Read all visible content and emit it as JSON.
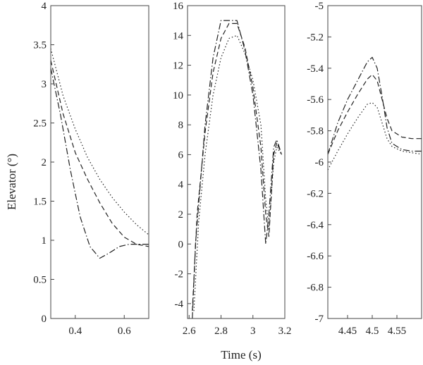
{
  "ylabel": "Elevator (°)",
  "xlabel": "Time (s)",
  "chart_data": [
    {
      "type": "line",
      "xlim": [
        0.3,
        0.7
      ],
      "ylim": [
        0,
        4
      ],
      "xticks": [
        0.4,
        0.6
      ],
      "xtick_labels": [
        "0.4",
        "0.6"
      ],
      "yticks": [
        0,
        0.5,
        1,
        1.5,
        2,
        2.5,
        3,
        3.5,
        4
      ],
      "ytick_labels": [
        "0",
        "0.5",
        "1",
        "1.5",
        "2",
        "2.5",
        "3",
        "3.5",
        "4"
      ],
      "series": [
        {
          "style": "dotted",
          "x": [
            0.3,
            0.35,
            0.4,
            0.45,
            0.5,
            0.55,
            0.6,
            0.65,
            0.7
          ],
          "y": [
            3.45,
            2.85,
            2.42,
            2.06,
            1.78,
            1.55,
            1.36,
            1.2,
            1.07
          ]
        },
        {
          "style": "dashed",
          "x": [
            0.3,
            0.35,
            0.4,
            0.45,
            0.5,
            0.55,
            0.6,
            0.65,
            0.7
          ],
          "y": [
            3.3,
            2.62,
            2.12,
            1.78,
            1.48,
            1.22,
            1.04,
            0.95,
            0.92
          ]
        },
        {
          "style": "dashdot",
          "x": [
            0.3,
            0.34,
            0.38,
            0.42,
            0.46,
            0.5,
            0.54,
            0.58,
            0.62,
            0.66,
            0.7
          ],
          "y": [
            3.2,
            2.6,
            1.9,
            1.3,
            0.92,
            0.77,
            0.84,
            0.92,
            0.95,
            0.95,
            0.95
          ]
        }
      ]
    },
    {
      "type": "line",
      "xlim": [
        2.59,
        3.2
      ],
      "ylim": [
        -5,
        16
      ],
      "xticks": [
        2.6,
        2.8,
        3,
        3.2
      ],
      "xtick_labels": [
        "2.6",
        "2.8",
        "3",
        "3.2"
      ],
      "yticks": [
        -4,
        -2,
        0,
        2,
        4,
        6,
        8,
        10,
        12,
        14,
        16
      ],
      "ytick_labels": [
        "-4",
        "-2",
        "0",
        "2",
        "4",
        "6",
        "8",
        "10",
        "12",
        "14",
        "16"
      ],
      "series": [
        {
          "style": "dotted",
          "x": [
            2.63,
            2.66,
            2.7,
            2.75,
            2.8,
            2.85,
            2.9,
            2.95,
            3.0,
            3.05,
            3.08,
            3.1,
            3.13,
            3.15,
            3.18
          ],
          "y": [
            -4.5,
            1.5,
            6.0,
            10.0,
            12.5,
            13.8,
            14.0,
            12.8,
            11.0,
            8.0,
            3.0,
            1.0,
            5.5,
            6.5,
            6.0
          ]
        },
        {
          "style": "dashed",
          "x": [
            2.62,
            2.65,
            2.7,
            2.75,
            2.8,
            2.85,
            2.9,
            2.95,
            3.0,
            3.05,
            3.08,
            3.1,
            3.13,
            3.15,
            3.18
          ],
          "y": [
            -4.5,
            2.0,
            7.5,
            11.5,
            13.8,
            14.8,
            14.8,
            13.2,
            10.5,
            6.5,
            2.0,
            0.5,
            6.0,
            6.8,
            6.0
          ]
        },
        {
          "style": "dashdot",
          "x": [
            2.62,
            2.64,
            2.7,
            2.75,
            2.8,
            2.85,
            2.9,
            2.95,
            3.0,
            3.05,
            3.08,
            3.1,
            3.13,
            3.15,
            3.18
          ],
          "y": [
            -5.0,
            0.0,
            8.0,
            12.5,
            15.0,
            15.0,
            15.0,
            13.0,
            10.0,
            5.0,
            0.0,
            2.0,
            6.5,
            7.0,
            6.0
          ]
        }
      ]
    },
    {
      "type": "line",
      "xlim": [
        4.41,
        4.6
      ],
      "ylim": [
        -7,
        -5
      ],
      "xticks": [
        4.45,
        4.5,
        4.55
      ],
      "xtick_labels": [
        "4.45",
        "4.5",
        "4.55"
      ],
      "yticks": [
        -7,
        -6.8,
        -6.6,
        -6.4,
        -6.2,
        -6,
        -5.8,
        -5.6,
        -5.4,
        -5.2,
        -5
      ],
      "ytick_labels": [
        "-7",
        "-6.8",
        "-6.6",
        "-6.4",
        "-6.2",
        "-6",
        "-5.8",
        "-5.6",
        "-5.4",
        "-5.2",
        "-5"
      ],
      "series": [
        {
          "style": "dotted",
          "x": [
            4.41,
            4.43,
            4.45,
            4.47,
            4.49,
            4.5,
            4.51,
            4.52,
            4.53,
            4.54,
            4.56,
            4.58,
            4.6
          ],
          "y": [
            -6.05,
            -5.93,
            -5.82,
            -5.72,
            -5.63,
            -5.62,
            -5.65,
            -5.75,
            -5.85,
            -5.9,
            -5.93,
            -5.94,
            -5.95
          ]
        },
        {
          "style": "dashed",
          "x": [
            4.41,
            4.43,
            4.45,
            4.47,
            4.49,
            4.5,
            4.51,
            4.52,
            4.53,
            4.54,
            4.56,
            4.58,
            4.6
          ],
          "y": [
            -5.95,
            -5.8,
            -5.68,
            -5.57,
            -5.47,
            -5.44,
            -5.48,
            -5.6,
            -5.72,
            -5.8,
            -5.84,
            -5.85,
            -5.85
          ]
        },
        {
          "style": "dashdot",
          "x": [
            4.41,
            4.43,
            4.45,
            4.47,
            4.49,
            4.5,
            4.51,
            4.52,
            4.53,
            4.54,
            4.56,
            4.58,
            4.6
          ],
          "y": [
            -5.95,
            -5.75,
            -5.6,
            -5.48,
            -5.36,
            -5.33,
            -5.4,
            -5.58,
            -5.78,
            -5.88,
            -5.92,
            -5.93,
            -5.93
          ]
        }
      ]
    }
  ]
}
